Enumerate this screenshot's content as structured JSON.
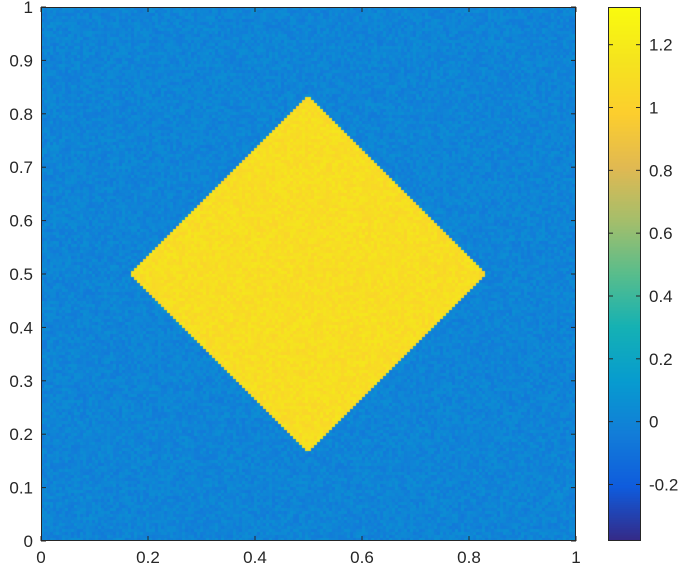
{
  "chart_data": {
    "type": "heatmap",
    "title": "",
    "xlabel": "",
    "ylabel": "",
    "xlim": [
      0,
      1
    ],
    "ylim": [
      0,
      1
    ],
    "x_ticks": [
      0,
      0.2,
      0.4,
      0.6,
      0.8,
      1
    ],
    "x_tick_labels": [
      "0",
      "0.2",
      "0.4",
      "0.6",
      "0.8",
      "1"
    ],
    "y_ticks": [
      0,
      0.1,
      0.2,
      0.3,
      0.4,
      0.5,
      0.6,
      0.7,
      0.8,
      0.9,
      1
    ],
    "y_tick_labels": [
      "0",
      "0.1",
      "0.2",
      "0.3",
      "0.4",
      "0.5",
      "0.6",
      "0.7",
      "0.8",
      "0.9",
      "1"
    ],
    "colormap": "parula",
    "clim": [
      -0.38,
      1.32
    ],
    "colorbar_ticks": [
      -0.2,
      0,
      0.2,
      0.4,
      0.6,
      0.8,
      1,
      1.2
    ],
    "colorbar_tick_labels": [
      "-0.2",
      "0",
      "0.2",
      "0.4",
      "0.6",
      "0.8",
      "1",
      "1.2"
    ],
    "field": {
      "background_value": 0.0,
      "background_noise": 0.06,
      "shape": "diamond",
      "center": [
        0.5,
        0.5
      ],
      "half_diagonal": 0.333,
      "inside_value": 1.1,
      "inside_noise": 0.07
    },
    "grid": false
  }
}
